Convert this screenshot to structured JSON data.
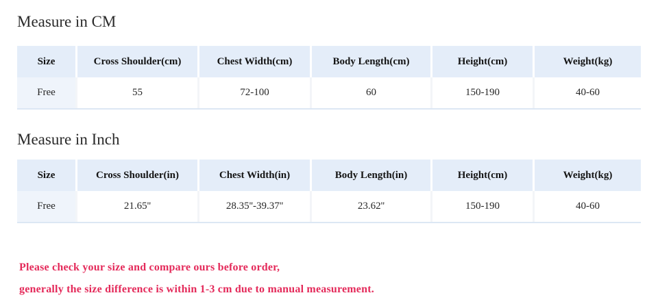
{
  "colors": {
    "header_bg": "#e4edf9",
    "first_col_bg": "#eff4fb",
    "table_border": "#dce7f4",
    "cell_divider": "#f3f5f8",
    "text_color": "#232323",
    "note_color": "#e42a5a"
  },
  "section_cm": {
    "title": "Measure in CM",
    "table": {
      "headers": [
        "Size",
        "Cross Shoulder(cm)",
        "Chest Width(cm)",
        "Body Length(cm)",
        "Height(cm)",
        "Weight(kg)"
      ],
      "rows": [
        [
          "Free",
          "55",
          "72-100",
          "60",
          "150-190",
          "40-60"
        ]
      ]
    }
  },
  "section_inch": {
    "title": "Measure in Inch",
    "table": {
      "headers": [
        "Size",
        "Cross Shoulder(in)",
        "Chest Width(in)",
        "Body Length(in)",
        "Height(cm)",
        "Weight(kg)"
      ],
      "rows": [
        [
          "Free",
          "21.65''",
          "28.35''-39.37''",
          "23.62''",
          "150-190",
          "40-60"
        ]
      ]
    }
  },
  "note": {
    "line1": "Please check your size and compare ours before order,",
    "line2": "generally the size difference is within 1-3 cm due to manual measurement."
  }
}
